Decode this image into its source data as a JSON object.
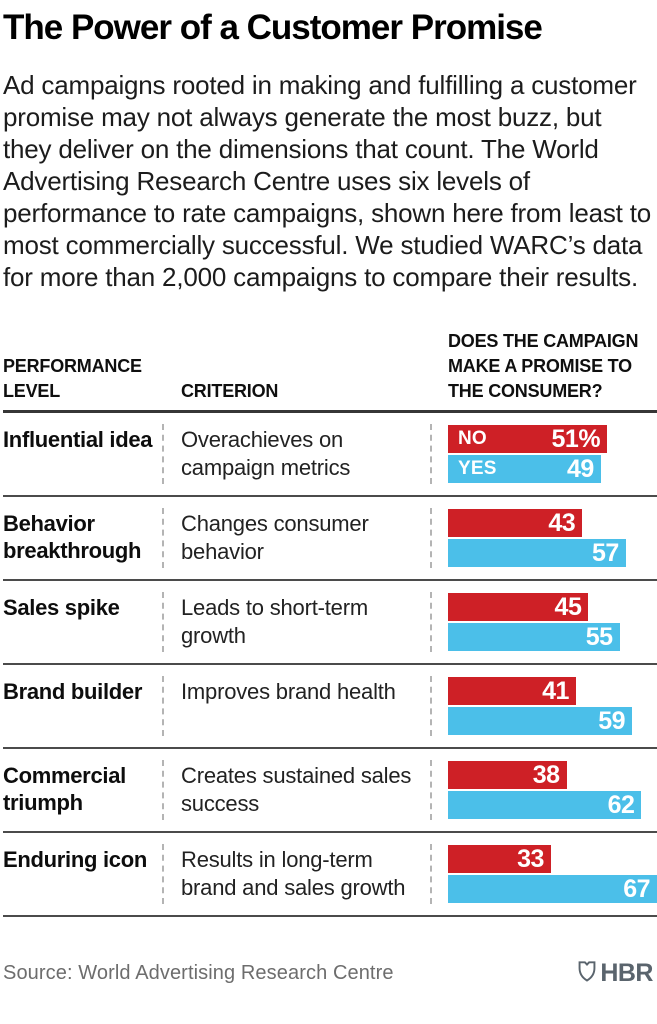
{
  "title": "The Power of a Customer Promise",
  "intro": "Ad campaigns rooted in making and fulfilling a customer promise may not always generate the most buzz, but they deliver on the dimensions that count. The World Advertising Research Centre uses six levels of performance to rate campaigns, shown here from least to most commercially successful. We studied WARC’s data for more than 2,000 campaigns to compare their results.",
  "header": {
    "level": "PERFORMANCE LEVEL",
    "criterion": "CRITERION",
    "promise": "DOES THE CAMPAIGN MAKE A PROMISE TO THE CONSUMER?"
  },
  "chart_data": {
    "type": "bar",
    "orientation": "horizontal",
    "title": "The Power of a Customer Promise",
    "categories": [
      "Influential idea",
      "Behavior breakthrough",
      "Sales spike",
      "Brand builder",
      "Commercial triumph",
      "Enduring icon"
    ],
    "criteria": [
      "Overachieves on campaign metrics",
      "Changes consumer behavior",
      "Leads to short-term growth",
      "Improves brand health",
      "Creates sustained sales success",
      "Results in long-term brand and sales growth"
    ],
    "series": [
      {
        "name": "NO",
        "color": "#ce2026",
        "values": [
          51,
          43,
          45,
          41,
          38,
          33
        ]
      },
      {
        "name": "YES",
        "color": "#4bbfe9",
        "values": [
          49,
          57,
          55,
          59,
          62,
          67
        ]
      }
    ],
    "unit": "%",
    "xlim": [
      0,
      67
    ],
    "value_labels": "inside-end",
    "grid": false,
    "legend_position": "inside-first-bars"
  },
  "rows": [
    {
      "level": "Influential idea",
      "criterion": "Overachieves on campaign metrics",
      "no": 51,
      "yes": 49,
      "no_label": "NO",
      "yes_label": "YES",
      "no_value": "51%",
      "yes_value": "49"
    },
    {
      "level": "Behavior breakthrough",
      "criterion": "Changes consumer behavior",
      "no": 43,
      "yes": 57,
      "no_label": "",
      "yes_label": "",
      "no_value": "43",
      "yes_value": "57"
    },
    {
      "level": "Sales spike",
      "criterion": "Leads to short-term growth",
      "no": 45,
      "yes": 55,
      "no_label": "",
      "yes_label": "",
      "no_value": "45",
      "yes_value": "55"
    },
    {
      "level": "Brand builder",
      "criterion": "Improves brand health",
      "no": 41,
      "yes": 59,
      "no_label": "",
      "yes_label": "",
      "no_value": "41",
      "yes_value": "59"
    },
    {
      "level": "Commercial triumph",
      "criterion": "Creates sustained sales success",
      "no": 38,
      "yes": 62,
      "no_label": "",
      "yes_label": "",
      "no_value": "38",
      "yes_value": "62"
    },
    {
      "level": "Enduring icon",
      "criterion": "Results in long-term brand and sales growth",
      "no": 33,
      "yes": 67,
      "no_label": "",
      "yes_label": "",
      "no_value": "33",
      "yes_value": "67"
    }
  ],
  "footer": {
    "source": "Source: World Advertising Research Centre",
    "brand": "HBR",
    "brand_color": "#5a646d"
  }
}
